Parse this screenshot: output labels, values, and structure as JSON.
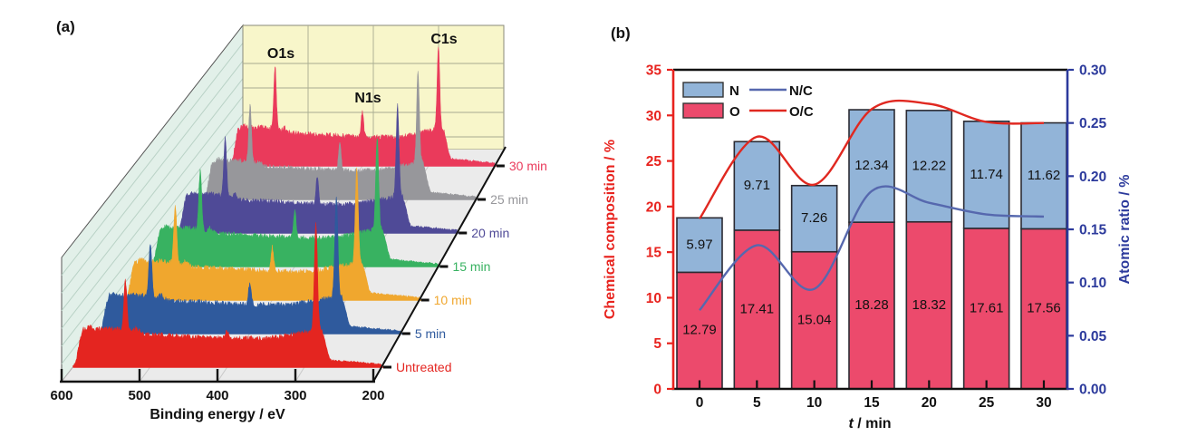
{
  "figure": {
    "panel_a_label": "(a)",
    "panel_b_label": "(b)",
    "background": "#ffffff"
  },
  "chart_data": [
    {
      "panel": "a",
      "type": "area",
      "description": "3D waterfall of XPS survey spectra vs plasma treatment time",
      "xlabel": "Binding energy / eV",
      "x_range": [
        600,
        200
      ],
      "x_ticks": [
        600,
        500,
        400,
        300,
        200
      ],
      "peak_annotations": [
        {
          "label": "O1s",
          "binding_energy_eV": 532
        },
        {
          "label": "N1s",
          "binding_energy_eV": 400
        },
        {
          "label": "C1s",
          "binding_energy_eV": 285
        }
      ],
      "series_front_to_back": [
        {
          "label": "Untreated",
          "color": "#e42520",
          "peak_heights": {
            "O1s": 55,
            "N1s": 8,
            "C1s": 118
          }
        },
        {
          "label": "5 min",
          "color": "#2f5a9d",
          "peak_heights": {
            "O1s": 62,
            "N1s": 24,
            "C1s": 116
          }
        },
        {
          "label": "10 min",
          "color": "#f0a72e",
          "peak_heights": {
            "O1s": 66,
            "N1s": 28,
            "C1s": 112
          }
        },
        {
          "label": "15 min",
          "color": "#38b261",
          "peak_heights": {
            "O1s": 70,
            "N1s": 32,
            "C1s": 112
          }
        },
        {
          "label": "20 min",
          "color": "#4f4a97",
          "peak_heights": {
            "O1s": 72,
            "N1s": 34,
            "C1s": 112
          }
        },
        {
          "label": "25 min",
          "color": "#97979b",
          "peak_heights": {
            "O1s": 72,
            "N1s": 34,
            "C1s": 114
          }
        },
        {
          "label": "30 min",
          "color": "#ea3a5b",
          "peak_heights": {
            "O1s": 82,
            "N1s": 34,
            "C1s": 106
          }
        }
      ],
      "walls": {
        "back_wall": "#f8f6ca",
        "left_wall": "#e2f0e9",
        "floor": "#ebebeb",
        "wall_grid": "#a8ab90",
        "hatch": "#b9d2c6",
        "floor_grid": "#c9c9c9",
        "edge": "#555555"
      }
    },
    {
      "panel": "b",
      "type": "stacked-bar+line",
      "categories": [
        0,
        5,
        10,
        15,
        20,
        25,
        30
      ],
      "xlabel": "t / min",
      "xlabel_italic": "t",
      "xlabel_rest": " / min",
      "ylabel_left": "Chemical composition / %",
      "ylabel_right": "Atomic ratio / %",
      "ylim_left": [
        0,
        35
      ],
      "ylim_right": [
        0.0,
        0.3
      ],
      "yticks_left": [
        0,
        5,
        10,
        15,
        20,
        25,
        30,
        35
      ],
      "yticks_right": [
        0.0,
        0.05,
        0.1,
        0.15,
        0.2,
        0.25,
        0.3
      ],
      "bar_series": [
        {
          "name": "N",
          "color": "#92b4d8",
          "values": [
            5.97,
            9.71,
            7.26,
            12.34,
            12.22,
            11.74,
            11.62
          ]
        },
        {
          "name": "O",
          "color": "#ec4a6c",
          "values": [
            12.79,
            17.41,
            15.04,
            18.28,
            18.32,
            17.61,
            17.56
          ]
        }
      ],
      "line_series": [
        {
          "name": "N/C",
          "color": "#5668ae",
          "values": [
            0.074,
            0.135,
            0.094,
            0.186,
            0.175,
            0.164,
            0.162
          ]
        },
        {
          "name": "O/C",
          "color": "#e02820",
          "values": [
            0.16,
            0.237,
            0.192,
            0.263,
            0.268,
            0.251,
            0.25
          ]
        }
      ],
      "legend": {
        "rows": [
          {
            "swatch": "N",
            "line": "N/C"
          },
          {
            "swatch": "O",
            "line": "O/C"
          }
        ]
      },
      "axis_colors": {
        "left": "#e8231e",
        "right": "#2c3a9c",
        "frame": "#111111"
      },
      "bar_border": "#2b2b33"
    }
  ]
}
